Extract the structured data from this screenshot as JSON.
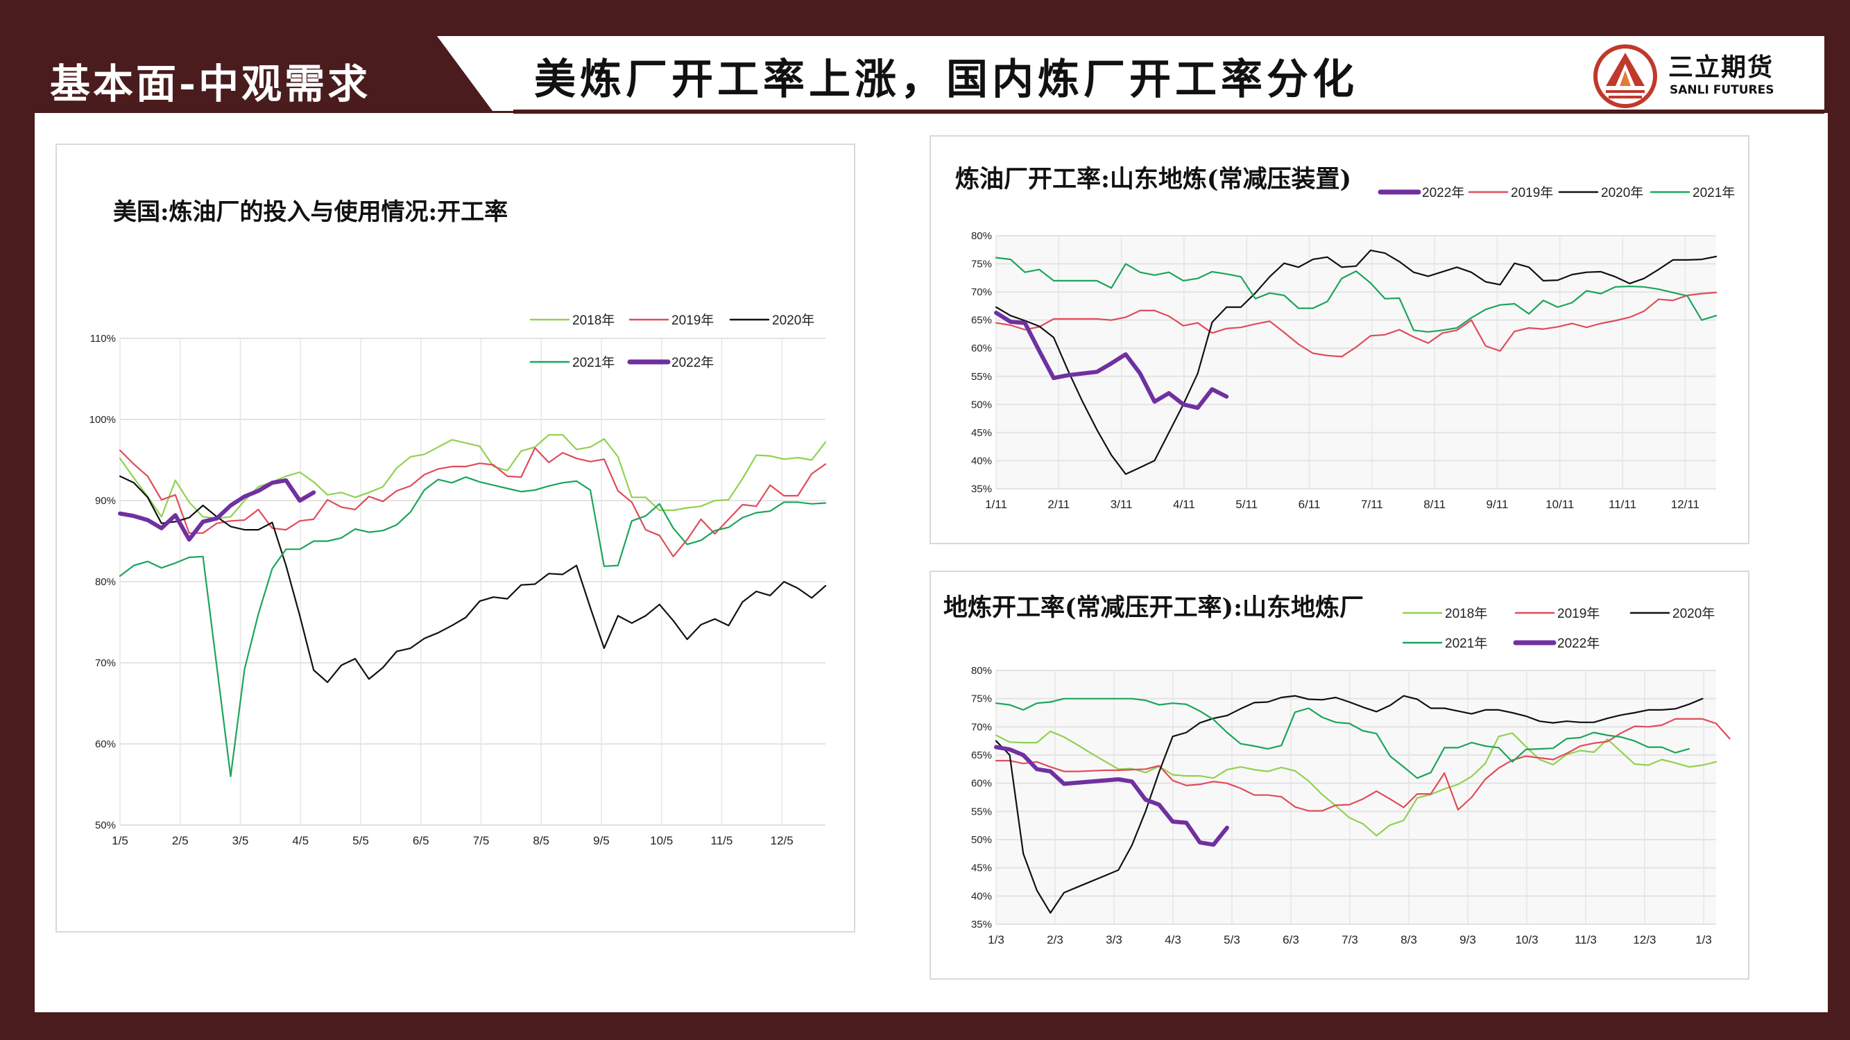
{
  "header": {
    "section_title": "基本面-中观需求",
    "main_title": "美炼厂开工率上涨，国内炼厂开工率分化"
  },
  "logo": {
    "name_cn": "三立期货",
    "name_en": "SANLI FUTURES",
    "color": "#c0392b"
  },
  "chart_data": [
    {
      "type": "line",
      "title": "美国:炼油厂的投入与使用情况:开工率",
      "xlabel": "",
      "ylabel": "",
      "xticks": [
        "1/5",
        "2/5",
        "3/5",
        "4/5",
        "5/5",
        "6/5",
        "7/5",
        "8/5",
        "9/5",
        "10/5",
        "11/5",
        "12/5"
      ],
      "yticks": [
        "50%",
        "60%",
        "70%",
        "80%",
        "90%",
        "100%",
        "110%"
      ],
      "ylim": [
        50,
        110
      ],
      "grid": true,
      "legend": "top-right",
      "series": [
        {
          "name": "2018年",
          "color": "#92d050",
          "values": [
            95.2,
            92.8,
            90.5,
            88,
            92.5,
            89.8,
            88,
            87.8,
            88,
            90,
            91.7,
            92.3,
            93,
            93.5,
            92.3,
            90.7,
            91,
            90.4,
            91,
            91.7,
            94,
            95.4,
            95.7,
            96.6,
            97.5,
            97.1,
            96.7,
            94.2,
            93.7,
            96.1,
            96.6,
            98.1,
            98.1,
            96.3,
            96.6,
            97.6,
            95.4,
            90.4,
            90.4,
            88.8,
            88.8,
            89.1,
            89.3,
            90,
            90.1,
            92.7,
            95.6,
            95.5,
            95.1,
            95.3,
            95,
            97.2
          ]
        },
        {
          "name": "2019年",
          "color": "#e04b5a",
          "values": [
            96.2,
            94.5,
            93,
            90.1,
            90.7,
            86,
            86,
            87.2,
            87.5,
            87.6,
            88.9,
            86.6,
            86.4,
            87.5,
            87.7,
            90.1,
            89.2,
            88.9,
            90.5,
            89.9,
            91.2,
            91.8,
            93.2,
            93.9,
            94.2,
            94.2,
            94.6,
            94.4,
            93,
            92.9,
            96.5,
            94.7,
            95.9,
            95.2,
            94.8,
            95.1,
            91.2,
            89.8,
            86.4,
            85.7,
            83.1,
            85.2,
            87.7,
            85.9,
            87.7,
            89.5,
            89.3,
            91.9,
            90.6,
            90.6,
            93.3,
            94.5
          ]
        },
        {
          "name": "2020年",
          "color": "#111111",
          "values": [
            93,
            92.2,
            90.4,
            87.2,
            87.4,
            87.9,
            89.4,
            88,
            86.8,
            86.4,
            86.4,
            87.3,
            82,
            75.8,
            69.1,
            67.6,
            69.7,
            70.5,
            68,
            69.4,
            71.4,
            71.8,
            73,
            73.7,
            74.6,
            75.6,
            77.6,
            78.1,
            77.9,
            79.6,
            79.7,
            81,
            80.9,
            82,
            76.8,
            71.8,
            75.8,
            74.9,
            75.8,
            77.2,
            75.2,
            72.9,
            74.7,
            75.4,
            74.6,
            77.5,
            78.8,
            78.3,
            80,
            79.2,
            78,
            79.5
          ]
        },
        {
          "name": "2021年",
          "color": "#1aa55a",
          "values": [
            80.7,
            82,
            82.5,
            81.7,
            82.3,
            83,
            83.1,
            69.5,
            56,
            69.2,
            76,
            81.6,
            84,
            84,
            85,
            85,
            85.4,
            86.5,
            86.1,
            86.3,
            87,
            88.6,
            91.3,
            92.6,
            92.2,
            92.9,
            92.3,
            91.9,
            91.5,
            91.1,
            91.3,
            91.8,
            92.2,
            92.4,
            91.3,
            81.9,
            82,
            87.5,
            88.1,
            89.6,
            86.6,
            84.6,
            85.1,
            86.3,
            86.7,
            87.9,
            88.5,
            88.7,
            89.8,
            89.8,
            89.6,
            89.7
          ]
        },
        {
          "name": "2022年",
          "color": "#7030a0",
          "emphasis": true,
          "values": [
            88.4,
            88.1,
            87.6,
            86.6,
            88.2,
            85.2,
            87.4,
            87.8,
            89.4,
            90.5,
            91.2,
            92.2,
            92.5,
            90,
            91
          ]
        }
      ]
    },
    {
      "type": "line",
      "title": "炼油厂开工率:山东地炼(常减压装置)",
      "xlabel": "",
      "ylabel": "",
      "xticks": [
        "1/11",
        "2/11",
        "3/11",
        "4/11",
        "5/11",
        "6/11",
        "7/11",
        "8/11",
        "9/11",
        "10/11",
        "11/11",
        "12/11"
      ],
      "yticks": [
        "35%",
        "40%",
        "45%",
        "50%",
        "55%",
        "60%",
        "65%",
        "70%",
        "75%",
        "80%"
      ],
      "ylim": [
        35,
        80
      ],
      "grid": true,
      "legend": "top-right",
      "series": [
        {
          "name": "2022年",
          "color": "#7030a0",
          "emphasis": true,
          "values": [
            66.3,
            64.7,
            64.5,
            59.5,
            54.7,
            55.2,
            55.5,
            55.8,
            57.3,
            58.9,
            55.5,
            50.5,
            52,
            50,
            49.4,
            52.7,
            51.4
          ]
        },
        {
          "name": "2019年",
          "color": "#e04b5a",
          "values": [
            64.5,
            64.1,
            63.3,
            63.8,
            65.2,
            65.2,
            65.2,
            65.2,
            65,
            65.5,
            66.7,
            66.7,
            65.7,
            64,
            64.5,
            62.7,
            63.5,
            63.7,
            64.3,
            64.8,
            62.8,
            60.7,
            59.1,
            58.7,
            58.5,
            60.2,
            62.2,
            62.4,
            63.3,
            62,
            60.9,
            62.7,
            63.2,
            65,
            60.4,
            59.5,
            63,
            63.6,
            63.4,
            63.8,
            64.4,
            63.7,
            64.4,
            64.9,
            65.5,
            66.6,
            68.7,
            68.5,
            69.4,
            69.7,
            69.9
          ]
        },
        {
          "name": "2020年",
          "color": "#111111",
          "values": [
            67.3,
            65.8,
            64.9,
            63.9,
            61.9,
            56,
            50.5,
            45.5,
            41,
            37.6,
            38.8,
            40,
            45,
            50,
            55.5,
            64.6,
            67.3,
            67.3,
            69.8,
            72.7,
            75.1,
            74.4,
            75.8,
            76.2,
            74.4,
            74.6,
            77.4,
            76.9,
            75.4,
            73.5,
            72.8,
            73.6,
            74.4,
            73.5,
            71.8,
            71.3,
            75.1,
            74.4,
            72,
            72.1,
            73.1,
            73.5,
            73.6,
            72.7,
            71.5,
            72.4,
            74,
            75.7,
            75.7,
            75.8,
            76.3
          ]
        },
        {
          "name": "2021年",
          "color": "#1aa55a",
          "values": [
            76.1,
            75.8,
            73.5,
            74,
            72,
            72,
            72,
            72,
            70.7,
            75,
            73.5,
            73,
            73.5,
            72,
            72.4,
            73.6,
            73.2,
            72.7,
            68.8,
            69.8,
            69.4,
            67.1,
            67.1,
            68.3,
            72.4,
            73.7,
            71.6,
            68.8,
            68.9,
            63.2,
            62.9,
            63.2,
            63.6,
            65.4,
            66.9,
            67.7,
            67.9,
            66.1,
            68.5,
            67.3,
            68.1,
            70.2,
            69.7,
            70.9,
            71,
            70.9,
            70.5,
            69.9,
            69.3,
            65,
            65.8
          ]
        }
      ]
    },
    {
      "type": "line",
      "title": "地炼开工率(常减压开工率):山东地炼厂",
      "xlabel": "",
      "ylabel": "",
      "xticks": [
        "1/3",
        "2/3",
        "3/3",
        "4/3",
        "5/3",
        "6/3",
        "7/3",
        "8/3",
        "9/3",
        "10/3",
        "11/3",
        "12/3",
        "1/3"
      ],
      "yticks": [
        "35%",
        "40%",
        "45%",
        "50%",
        "55%",
        "60%",
        "65%",
        "70%",
        "75%",
        "80%"
      ],
      "ylim": [
        35,
        80
      ],
      "grid": true,
      "legend": "top-right",
      "series": [
        {
          "name": "2018年",
          "color": "#92d050",
          "values": [
            68.5,
            67.3,
            67.2,
            67.2,
            69.2,
            68.2,
            66.8,
            65.3,
            63.9,
            62.5,
            62.6,
            61.9,
            63,
            61.5,
            61.3,
            61.3,
            60.9,
            62.4,
            62.9,
            62.4,
            62.1,
            62.8,
            62.2,
            60.4,
            58,
            56,
            53.9,
            52.8,
            50.7,
            52.6,
            53.4,
            57.4,
            58,
            59,
            59.8,
            61.2,
            63.5,
            68.3,
            68.9,
            66.5,
            64.2,
            63.3,
            65.1,
            65.8,
            65.5,
            67.8,
            65.6,
            63.4,
            63.2,
            64.2,
            63.6,
            62.9,
            63.2,
            63.8
          ]
        },
        {
          "name": "2019年",
          "color": "#e04b5a",
          "values": [
            64,
            64,
            63.5,
            63.8,
            62.9,
            62.1,
            62.1,
            62.2,
            62.3,
            62.3,
            62.4,
            62.5,
            63.1,
            60.5,
            59.6,
            59.8,
            60.3,
            60,
            59.1,
            57.9,
            57.9,
            57.6,
            55.8,
            55.1,
            55.1,
            56.1,
            56.2,
            57.2,
            58.6,
            57.2,
            55.7,
            58.1,
            58.1,
            61.8,
            55.3,
            57.5,
            60.7,
            62.7,
            64.1,
            64.8,
            64.5,
            64.2,
            65.3,
            66.6,
            67.1,
            67.4,
            68.9,
            70.1,
            70,
            70.3,
            71.4,
            71.4,
            71.4,
            70.6,
            67.9
          ]
        },
        {
          "name": "2020年",
          "color": "#111111",
          "values": [
            67.5,
            65,
            47.5,
            41,
            37,
            40.6,
            41.6,
            42.6,
            43.6,
            44.6,
            49,
            55,
            62,
            68.3,
            69,
            70.7,
            71.5,
            72,
            73.2,
            74.3,
            74.4,
            75.2,
            75.5,
            74.9,
            74.8,
            75.2,
            74.4,
            73.5,
            72.7,
            73.8,
            75.5,
            74.9,
            73.3,
            73.3,
            72.8,
            72.3,
            73,
            73,
            72.5,
            71.9,
            71,
            70.7,
            71,
            70.8,
            70.8,
            71.5,
            72.1,
            72.5,
            73,
            73,
            73.2,
            74,
            75
          ]
        },
        {
          "name": "2021年",
          "color": "#1aa55a",
          "values": [
            74.2,
            73.9,
            73,
            74.2,
            74.4,
            75,
            75,
            75,
            75,
            75,
            75,
            74.7,
            73.9,
            74.2,
            74,
            72.8,
            71.3,
            69,
            67,
            66.6,
            66.1,
            66.7,
            72.6,
            73.3,
            71.7,
            70.8,
            70.6,
            69.3,
            68.8,
            64.8,
            62.9,
            60.9,
            61.9,
            66.3,
            66.3,
            67.2,
            66.6,
            66.3,
            63.8,
            66,
            66.1,
            66.2,
            67.9,
            68.1,
            69,
            68.5,
            68.2,
            67.5,
            66.4,
            66.4,
            65.4,
            66.1
          ]
        },
        {
          "name": "2022年",
          "color": "#7030a0",
          "emphasis": true,
          "values": [
            66.4,
            66,
            65,
            62.5,
            62.1,
            59.9,
            60.1,
            60.3,
            60.5,
            60.7,
            60.3,
            57.1,
            56.2,
            53.2,
            53,
            49.5,
            49.1,
            52.1
          ]
        }
      ]
    }
  ]
}
